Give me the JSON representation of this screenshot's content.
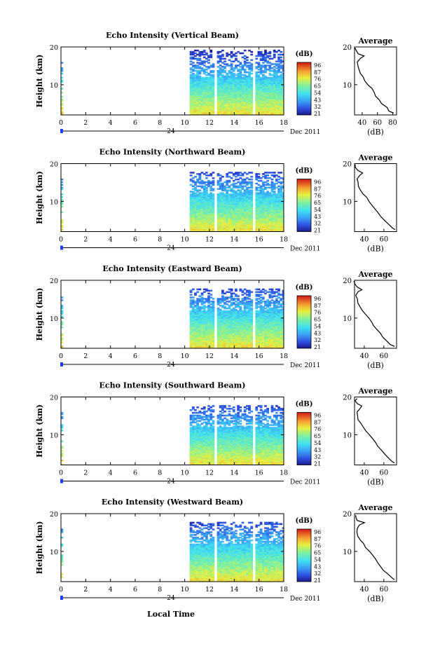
{
  "figure": {
    "xlabel": "Local Time",
    "date_label": "Dec 2011",
    "day_label": "24",
    "colorbar_unit": "(dB)",
    "colorbar_ticks": [
      "96",
      "87",
      "76",
      "65",
      "54",
      "43",
      "32",
      "21"
    ],
    "avg_title": "Average",
    "avg_xlabel": "(dB)"
  },
  "chart_data": [
    {
      "type": "heatmap",
      "title": "Echo Intensity (Vertical Beam)",
      "ylabel": "Height (km)",
      "xlim": [
        0,
        18
      ],
      "ylim": [
        2,
        20
      ],
      "xticks": [
        "0",
        "2",
        "4",
        "6",
        "8",
        "10",
        "12",
        "14",
        "16",
        "18"
      ],
      "yticks": [
        "20",
        "10"
      ],
      "colorscale_db": [
        21,
        96
      ],
      "data_blocks_local_time": [
        [
          0,
          0.15
        ],
        [
          10.4,
          12.2
        ],
        [
          12.6,
          15.3
        ],
        [
          15.7,
          18.0
        ]
      ],
      "data_gaps_local_time": [
        [
          12.2,
          12.6
        ],
        [
          15.3,
          15.7
        ]
      ],
      "echo_top_km": 19.0,
      "average_profile": {
        "xticks": [
          "40",
          "60",
          "80"
        ],
        "yticks": [
          "20",
          "10"
        ],
        "xlim": [
          30,
          85
        ],
        "ylim": [
          2,
          20
        ],
        "points_db_height_km": [
          [
            82,
            2.5
          ],
          [
            76,
            3
          ],
          [
            72,
            4
          ],
          [
            66,
            5
          ],
          [
            63,
            6
          ],
          [
            58,
            7
          ],
          [
            55,
            8
          ],
          [
            52,
            9
          ],
          [
            48,
            10
          ],
          [
            44,
            11
          ],
          [
            41,
            12
          ],
          [
            38,
            13
          ],
          [
            36,
            14
          ],
          [
            35,
            15
          ],
          [
            34,
            16
          ],
          [
            37,
            17
          ],
          [
            42,
            17.6
          ],
          [
            35,
            18.2
          ],
          [
            33,
            19
          ],
          [
            31,
            19.8
          ]
        ]
      }
    },
    {
      "type": "heatmap",
      "title": "Echo Intensity (Northward Beam)",
      "ylabel": "Height (km)",
      "xlim": [
        0,
        18
      ],
      "ylim": [
        2,
        20
      ],
      "xticks": [
        "0",
        "2",
        "4",
        "6",
        "8",
        "10",
        "12",
        "14",
        "16",
        "18"
      ],
      "yticks": [
        "20",
        "10"
      ],
      "colorscale_db": [
        21,
        96
      ],
      "data_blocks_local_time": [
        [
          0,
          0.15
        ],
        [
          10.4,
          12.2
        ],
        [
          12.6,
          15.3
        ],
        [
          15.7,
          18.0
        ]
      ],
      "data_gaps_local_time": [
        [
          12.2,
          12.6
        ],
        [
          15.3,
          15.7
        ]
      ],
      "echo_top_km": 17.5,
      "average_profile": {
        "xticks": [
          "40",
          "60"
        ],
        "yticks": [
          "20",
          "10"
        ],
        "xlim": [
          30,
          73
        ],
        "ylim": [
          2,
          20
        ],
        "points_db_height_km": [
          [
            71,
            2.5
          ],
          [
            68,
            3
          ],
          [
            64,
            4
          ],
          [
            60,
            5
          ],
          [
            57,
            6
          ],
          [
            54,
            7
          ],
          [
            51,
            8
          ],
          [
            48,
            9
          ],
          [
            45,
            10
          ],
          [
            42,
            11
          ],
          [
            39,
            12
          ],
          [
            36,
            13
          ],
          [
            34,
            14
          ],
          [
            33,
            15
          ],
          [
            32,
            16
          ],
          [
            36,
            17
          ],
          [
            38,
            17.5
          ],
          [
            33,
            18.2
          ],
          [
            31,
            19
          ],
          [
            30,
            19.8
          ]
        ]
      }
    },
    {
      "type": "heatmap",
      "title": "Echo Intensity (Eastward Beam)",
      "ylabel": "Height (km)",
      "xlim": [
        0,
        18
      ],
      "ylim": [
        2,
        20
      ],
      "xticks": [
        "0",
        "2",
        "4",
        "6",
        "8",
        "10",
        "12",
        "14",
        "16",
        "18"
      ],
      "yticks": [
        "20",
        "10"
      ],
      "colorscale_db": [
        21,
        96
      ],
      "data_blocks_local_time": [
        [
          0,
          0.15
        ],
        [
          10.4,
          12.2
        ],
        [
          12.6,
          15.3
        ],
        [
          15.7,
          18.0
        ]
      ],
      "data_gaps_local_time": [
        [
          12.2,
          12.6
        ],
        [
          15.3,
          15.7
        ]
      ],
      "echo_top_km": 17.5,
      "average_profile": {
        "xticks": [
          "40",
          "60"
        ],
        "yticks": [
          "20",
          "10"
        ],
        "xlim": [
          30,
          73
        ],
        "ylim": [
          2,
          20
        ],
        "points_db_height_km": [
          [
            71,
            2.5
          ],
          [
            67,
            3
          ],
          [
            63,
            4
          ],
          [
            59,
            5
          ],
          [
            56,
            6
          ],
          [
            53,
            7
          ],
          [
            50,
            8
          ],
          [
            47,
            9
          ],
          [
            44,
            10
          ],
          [
            41,
            11
          ],
          [
            38,
            12
          ],
          [
            36,
            13
          ],
          [
            34,
            14
          ],
          [
            33,
            15
          ],
          [
            32,
            16
          ],
          [
            34,
            17
          ],
          [
            37,
            17.5
          ],
          [
            33,
            18.2
          ],
          [
            31,
            19
          ],
          [
            30,
            19.8
          ]
        ]
      }
    },
    {
      "type": "heatmap",
      "title": "Echo Intensity (Southward Beam)",
      "ylabel": "Height (km)",
      "xlim": [
        0,
        18
      ],
      "ylim": [
        2,
        20
      ],
      "xticks": [
        "0",
        "2",
        "4",
        "6",
        "8",
        "10",
        "12",
        "14",
        "16",
        "18"
      ],
      "yticks": [
        "20",
        "10"
      ],
      "colorscale_db": [
        21,
        96
      ],
      "data_blocks_local_time": [
        [
          0,
          0.15
        ],
        [
          10.4,
          12.2
        ],
        [
          12.6,
          15.3
        ],
        [
          15.7,
          18.0
        ]
      ],
      "data_gaps_local_time": [
        [
          12.2,
          12.6
        ],
        [
          15.3,
          15.7
        ]
      ],
      "echo_top_km": 17.5,
      "average_profile": {
        "xticks": [
          "40",
          "60"
        ],
        "yticks": [
          "20",
          "10"
        ],
        "xlim": [
          30,
          73
        ],
        "ylim": [
          2,
          20
        ],
        "points_db_height_km": [
          [
            71,
            2.5
          ],
          [
            68,
            3
          ],
          [
            64,
            4
          ],
          [
            60,
            5
          ],
          [
            57,
            6
          ],
          [
            54,
            7
          ],
          [
            51,
            8
          ],
          [
            48,
            9
          ],
          [
            45,
            10
          ],
          [
            42,
            11
          ],
          [
            39,
            12
          ],
          [
            36,
            13
          ],
          [
            34,
            14
          ],
          [
            33,
            15
          ],
          [
            32,
            16
          ],
          [
            36,
            17
          ],
          [
            38,
            17.6
          ],
          [
            33,
            18.2
          ],
          [
            31,
            19
          ],
          [
            32,
            19.6
          ]
        ]
      }
    },
    {
      "type": "heatmap",
      "title": "Echo Intensity (Westward Beam)",
      "ylabel": "Height (km)",
      "xlim": [
        0,
        18
      ],
      "ylim": [
        2,
        20
      ],
      "xticks": [
        "0",
        "2",
        "4",
        "6",
        "8",
        "10",
        "12",
        "14",
        "16",
        "18"
      ],
      "yticks": [
        "20",
        "10"
      ],
      "colorscale_db": [
        21,
        96
      ],
      "data_blocks_local_time": [
        [
          0,
          0.15
        ],
        [
          10.4,
          12.2
        ],
        [
          12.6,
          15.3
        ],
        [
          15.7,
          18.0
        ]
      ],
      "data_gaps_local_time": [
        [
          12.2,
          12.6
        ],
        [
          15.3,
          15.7
        ]
      ],
      "echo_top_km": 17.5,
      "average_profile": {
        "xticks": [
          "40",
          "60"
        ],
        "yticks": [
          "20",
          "10"
        ],
        "xlim": [
          30,
          73
        ],
        "ylim": [
          2,
          20
        ],
        "points_db_height_km": [
          [
            71,
            2.5
          ],
          [
            68,
            3
          ],
          [
            64,
            4
          ],
          [
            60,
            5
          ],
          [
            57,
            6
          ],
          [
            54,
            7
          ],
          [
            51,
            8
          ],
          [
            48,
            9
          ],
          [
            45,
            10
          ],
          [
            42,
            11
          ],
          [
            39,
            12
          ],
          [
            36,
            13
          ],
          [
            34,
            14
          ],
          [
            33,
            15
          ],
          [
            32,
            16
          ],
          [
            35,
            17
          ],
          [
            40,
            17.6
          ],
          [
            33,
            18.2
          ],
          [
            31,
            19
          ],
          [
            31,
            19.6
          ]
        ]
      }
    }
  ]
}
